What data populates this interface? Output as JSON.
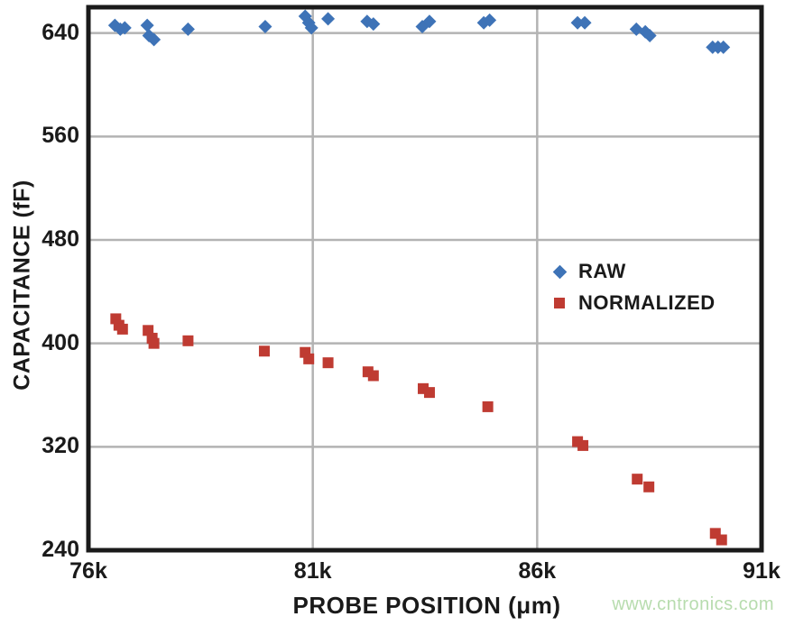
{
  "watermark": {
    "text": "www.cntronics.com",
    "color": "#b7dcae"
  },
  "chart_data": {
    "type": "scatter",
    "title": "",
    "xlabel": "PROBE POSITION (μm)",
    "ylabel": "CAPACITANCE (fF)",
    "xlim": [
      76000,
      91000
    ],
    "ylim": [
      240,
      660
    ],
    "grid": true,
    "grid_color": "#b3b3b3",
    "frame_color": "#1a1a1a",
    "x_ticks": [
      {
        "value": 76000,
        "label": "76k"
      },
      {
        "value": 81000,
        "label": "81k"
      },
      {
        "value": 86000,
        "label": "86k"
      },
      {
        "value": 91000,
        "label": "91k"
      }
    ],
    "y_ticks": [
      {
        "value": 240,
        "label": "240"
      },
      {
        "value": 320,
        "label": "320"
      },
      {
        "value": 400,
        "label": "400"
      },
      {
        "value": 480,
        "label": "480"
      },
      {
        "value": 560,
        "label": "560"
      },
      {
        "value": 640,
        "label": "640"
      }
    ],
    "legend": {
      "position": "middle-right"
    },
    "series": [
      {
        "name": "RAW",
        "marker": "diamond",
        "color": "#3e73b7",
        "points": [
          [
            76590,
            646
          ],
          [
            76710,
            643
          ],
          [
            76810,
            644
          ],
          [
            77310,
            646
          ],
          [
            77350,
            638
          ],
          [
            77460,
            635
          ],
          [
            78220,
            643
          ],
          [
            79940,
            645
          ],
          [
            80830,
            653
          ],
          [
            80910,
            648
          ],
          [
            80970,
            644
          ],
          [
            81340,
            651
          ],
          [
            82210,
            649
          ],
          [
            82350,
            647
          ],
          [
            83440,
            645
          ],
          [
            83600,
            649
          ],
          [
            84810,
            648
          ],
          [
            84940,
            650
          ],
          [
            86900,
            648
          ],
          [
            87060,
            648
          ],
          [
            88210,
            643
          ],
          [
            88410,
            641
          ],
          [
            88510,
            638
          ],
          [
            89910,
            629
          ],
          [
            90030,
            629
          ],
          [
            90150,
            629
          ]
        ]
      },
      {
        "name": "NORMALIZED",
        "marker": "square",
        "color": "#bf3b32",
        "points": [
          [
            76610,
            419
          ],
          [
            76680,
            414
          ],
          [
            76760,
            411
          ],
          [
            77330,
            410
          ],
          [
            77420,
            404
          ],
          [
            77460,
            400
          ],
          [
            78220,
            402
          ],
          [
            79920,
            394
          ],
          [
            80830,
            393
          ],
          [
            80910,
            388
          ],
          [
            81340,
            385
          ],
          [
            82230,
            378
          ],
          [
            82350,
            375
          ],
          [
            83460,
            365
          ],
          [
            83600,
            362
          ],
          [
            84900,
            351
          ],
          [
            86900,
            324
          ],
          [
            87020,
            321
          ],
          [
            88230,
            295
          ],
          [
            88490,
            289
          ],
          [
            89970,
            253
          ],
          [
            90110,
            248
          ]
        ]
      }
    ]
  }
}
